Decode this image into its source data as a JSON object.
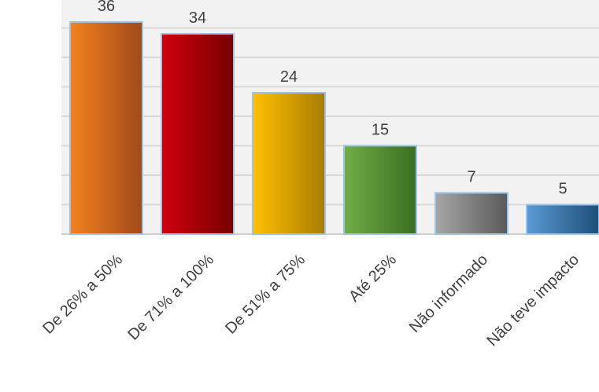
{
  "chart_data": {
    "type": "bar",
    "categories": [
      "De 26% a 50%",
      "De 71% a 100%",
      "De 51% a 75%",
      "Até 25%",
      "Não informado",
      "Não teve impacto"
    ],
    "values": [
      36,
      34,
      24,
      15,
      7,
      5
    ],
    "ylim": [
      0,
      40
    ],
    "grid": true,
    "legend": "none",
    "colors": [
      [
        "#F58220",
        "#A0491A"
      ],
      [
        "#D0000E",
        "#780000"
      ],
      [
        "#FFC000",
        "#A87C00"
      ],
      [
        "#70AD47",
        "#3B6E22"
      ],
      [
        "#A6A6A6",
        "#5A5A5A"
      ],
      [
        "#5B9BD5",
        "#1F4E79"
      ]
    ],
    "bar_border_color": "#9DC3E6",
    "grid_color": "#D9D9D9",
    "plot_background": "#F2F2F2"
  }
}
